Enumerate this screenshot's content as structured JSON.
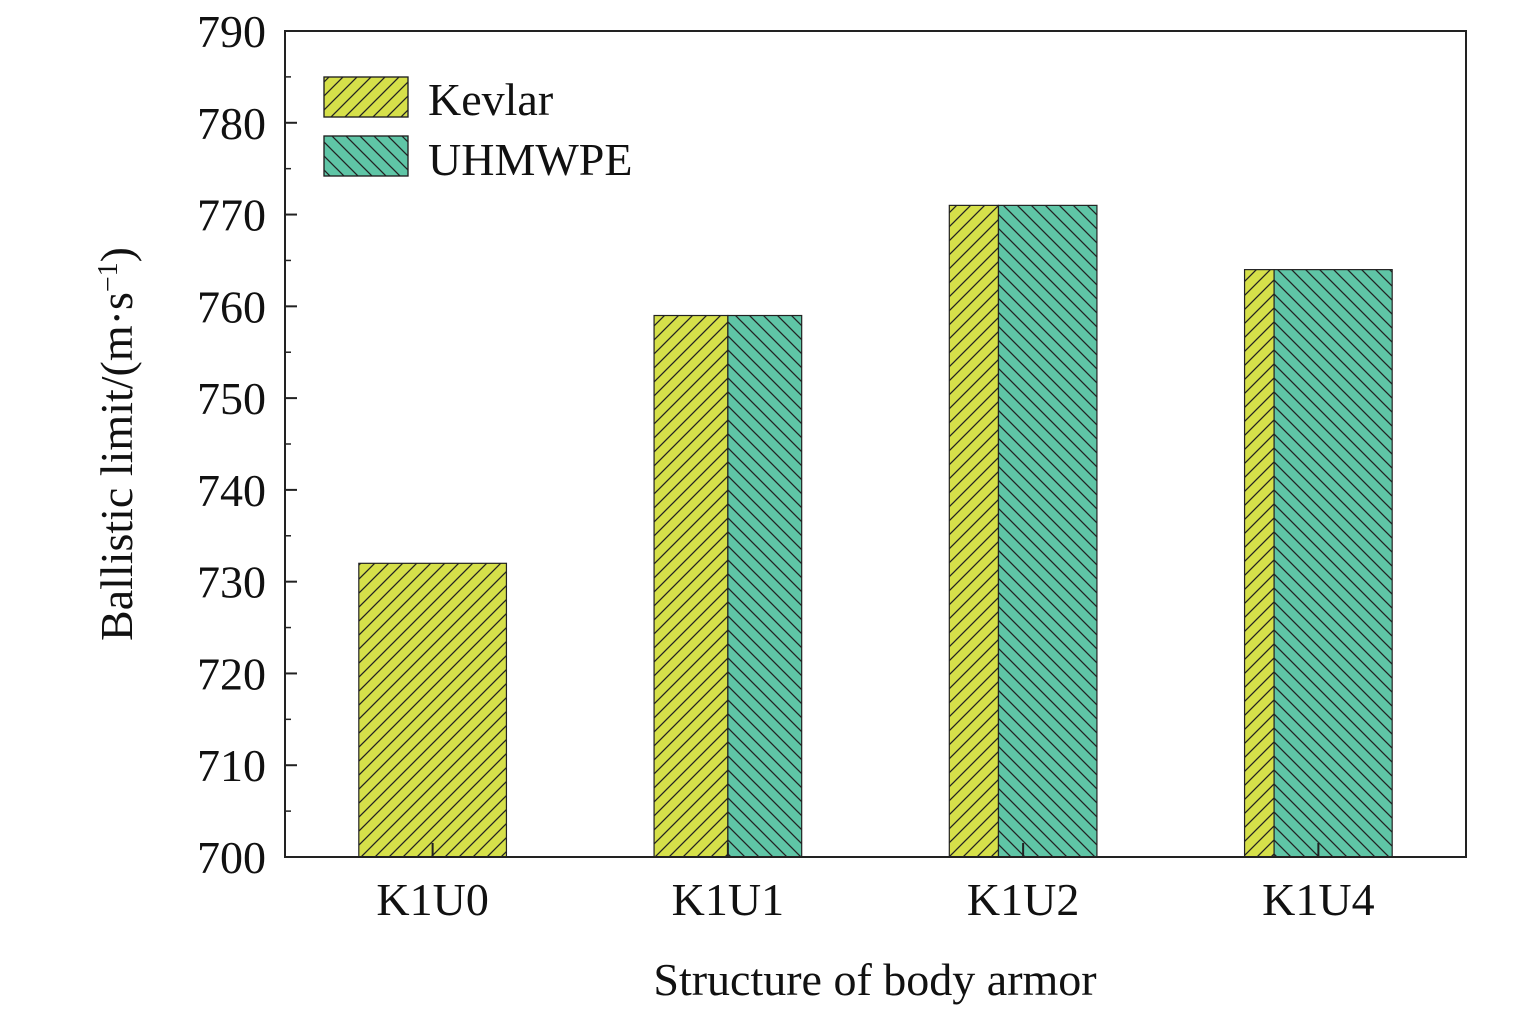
{
  "chart_data": {
    "type": "bar",
    "layout": "stacked-composition",
    "categories": [
      "K1U0",
      "K1U1",
      "K1U2",
      "K1U4"
    ],
    "values": [
      732,
      759,
      771,
      764
    ],
    "composition_fraction": {
      "Kevlar": [
        1.0,
        0.5,
        0.333,
        0.2
      ],
      "UHMWPE": [
        0.0,
        0.5,
        0.667,
        0.8
      ]
    },
    "series": [
      {
        "name": "Kevlar",
        "color": "#d6e04a",
        "hatch": "forward"
      },
      {
        "name": "UHMWPE",
        "color": "#5fc5a6",
        "hatch": "backward"
      }
    ],
    "xlabel": "Structure of body armor",
    "ylabel": "Ballistic limit/(m·s",
    "ylabel_sup": "−1",
    "ylabel_close": ")",
    "ylim": [
      700,
      790
    ],
    "yticks": [
      700,
      710,
      720,
      730,
      740,
      750,
      760,
      770,
      780,
      790
    ],
    "legend_position": "top-left",
    "grid": false
  }
}
